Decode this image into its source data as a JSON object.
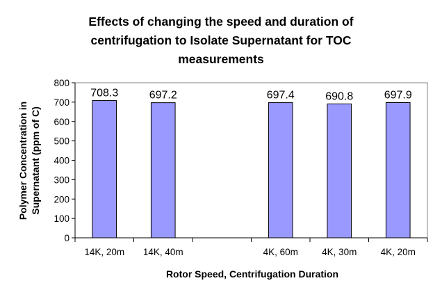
{
  "chart_data": {
    "type": "bar",
    "title_lines": [
      "Effects of changing the speed and duration of",
      "centrifugation to Isolate Supernatant for TOC",
      "measurements"
    ],
    "xlabel": "Rotor Speed, Centrifugation Duration",
    "ylabel_lines": [
      "Polymer Concentration in",
      "Supernatant (ppm of C)"
    ],
    "categories": [
      "14K, 20m",
      "14K, 40m",
      "",
      "4K, 60m",
      "4K, 30m",
      "4K, 20m"
    ],
    "values": [
      708.3,
      697.2,
      null,
      697.4,
      690.8,
      697.9
    ],
    "data_labels": [
      "708.3",
      "697.2",
      "",
      "697.4",
      "690.8",
      "697.9"
    ],
    "ylim": [
      0,
      800
    ],
    "yticks": [
      0,
      100,
      200,
      300,
      400,
      500,
      600,
      700,
      800
    ],
    "grid": false,
    "legend": "none",
    "bar_color": "#9999ff"
  }
}
